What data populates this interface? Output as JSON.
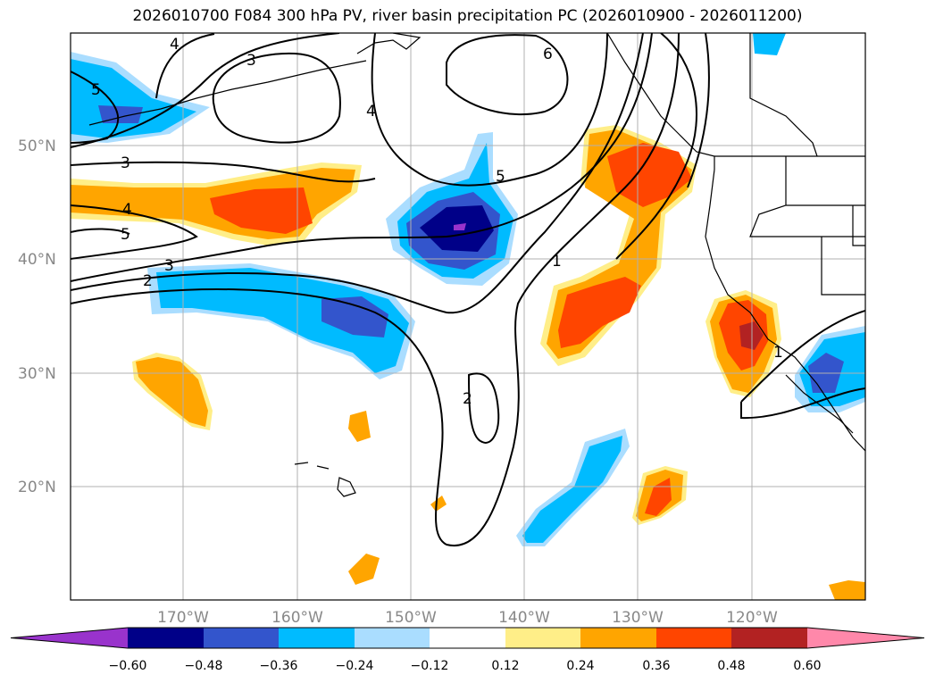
{
  "title": "2026010700 F084 300 hPa PV, river basin precipitation PC (2026010900 - 2026011200)",
  "lat_labels": [
    "50°N",
    "40°N",
    "30°N",
    "20°N"
  ],
  "lon_labels": [
    "170°W",
    "160°W",
    "150°W",
    "140°W",
    "130°W",
    "120°W"
  ],
  "colorbar": {
    "ticks": [
      "−0.60",
      "−0.48",
      "−0.36",
      "−0.24",
      "−0.12",
      "0.12",
      "0.24",
      "0.36",
      "0.48",
      "0.60"
    ],
    "colors": [
      "#9933cc",
      "#000088",
      "#3355cc",
      "#00bbff",
      "#aaddff",
      "#ffffff",
      "#ffee88",
      "#ffa500",
      "#ff4500",
      "#b22222",
      "#ff88aa"
    ]
  },
  "contour_labels": [
    "4",
    "3",
    "6",
    "4",
    "5",
    "3",
    "4",
    "5",
    "3",
    "2",
    "5",
    "1",
    "1",
    "2"
  ]
}
